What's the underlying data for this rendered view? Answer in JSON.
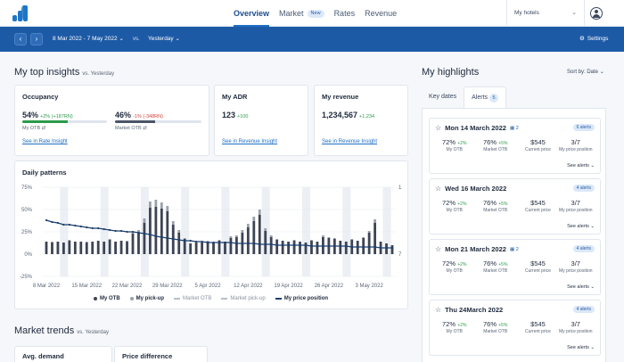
{
  "nav": {
    "tabs": [
      {
        "label": "Overview",
        "active": true
      },
      {
        "label": "Market",
        "badge": "New"
      },
      {
        "label": "Rates"
      },
      {
        "label": "Revenue"
      }
    ],
    "hotel_select": "My hotels",
    "icons": {
      "logo": "brand-logo",
      "user": "user-circle-icon"
    }
  },
  "filter": {
    "date_range": "8 Mar 2022 - 7 May 2022",
    "vs_label": "vs.",
    "compare": "Yesterday",
    "settings": "Settings"
  },
  "insights": {
    "title": "My top insights",
    "subtitle": "vs. Yesterday",
    "occupancy": {
      "title": "Occupancy",
      "mine": {
        "value": "54%",
        "delta": "+2% (+187RN)",
        "label": "My OTB",
        "fill": 0.54
      },
      "market": {
        "value": "46%",
        "delta": "-1% (-348RN)",
        "label": "Market OTB",
        "fill": 0.46
      },
      "link": "See in Rate Insight"
    },
    "adr": {
      "title": "My ADR",
      "value": "123",
      "delta": "+100",
      "link": "See in Revenue Insight"
    },
    "revenue": {
      "title": "My revenue",
      "value": "1,234,567",
      "delta": "+1,234",
      "link": "See in Revenue Insight"
    },
    "patterns": {
      "title": "Daily patterns",
      "legend": [
        "My OTB",
        "My pick-up",
        "Market OTB",
        "Market pick-up",
        "My price position"
      ]
    }
  },
  "chart_data": {
    "type": "bar",
    "y_ticks": [
      "75%",
      "50%",
      "25%",
      "0%",
      "-25%"
    ],
    "ylim": [
      -25,
      75
    ],
    "y2_ticks": [
      "1",
      "7"
    ],
    "x_ticks": [
      "8 Mar 2022",
      "15 Mar 2022",
      "22 Mar 2022",
      "29 Mar 2022",
      "5 Apr 2022",
      "12 Apr 2022",
      "19 Apr 2022",
      "26 Apr 2022",
      "3 May 2022"
    ],
    "weekend_bands": [
      3,
      10,
      17,
      24,
      31,
      38,
      45,
      52,
      59
    ],
    "series": [
      {
        "name": "My OTB",
        "color": "#3d4454",
        "values": [
          14,
          13,
          14,
          13,
          15,
          14,
          14,
          13,
          14,
          15,
          14,
          16,
          14,
          15,
          14,
          23,
          24,
          35,
          52,
          53,
          51,
          48,
          33,
          24,
          17,
          12,
          13,
          13,
          14,
          13,
          15,
          14,
          18,
          19,
          24,
          30,
          37,
          44,
          26,
          19,
          16,
          15,
          14,
          15,
          14,
          13,
          15,
          14,
          19,
          18,
          17,
          15,
          14,
          16,
          15,
          18,
          24,
          35,
          14,
          12,
          10
        ]
      },
      {
        "name": "My pick-up",
        "color": "#9aa1ac",
        "values": [
          0,
          1,
          0,
          0,
          1,
          0,
          0,
          1,
          0,
          0,
          0,
          1,
          0,
          0,
          1,
          2,
          3,
          5,
          7,
          8,
          7,
          6,
          4,
          3,
          1,
          0,
          0,
          0,
          1,
          0,
          1,
          0,
          2,
          2,
          3,
          4,
          5,
          6,
          3,
          2,
          1,
          0,
          0,
          1,
          0,
          0,
          1,
          0,
          2,
          1,
          1,
          0,
          0,
          1,
          0,
          1,
          2,
          4,
          0,
          0,
          0
        ]
      },
      {
        "name": "My price position",
        "color": "#1d3f6e",
        "values": [
          38,
          36,
          35,
          33,
          33,
          32,
          31,
          30,
          29,
          29,
          28,
          27,
          26,
          26,
          25,
          25,
          24,
          23,
          22,
          20,
          19,
          18,
          17,
          16,
          15,
          15,
          14,
          14,
          13,
          13,
          13,
          13,
          13,
          12,
          12,
          12,
          12,
          11,
          11,
          11,
          10,
          10,
          10,
          10,
          10,
          10,
          9,
          9,
          9,
          9,
          9,
          9,
          9,
          8,
          8,
          8,
          8,
          8,
          7,
          7,
          7
        ]
      }
    ]
  },
  "highlights": {
    "title": "My highlights",
    "sort": "Sort by: Date",
    "tabs": [
      {
        "label": "Key dates"
      },
      {
        "label": "Alerts",
        "count": "5",
        "active": true
      }
    ],
    "items": [
      {
        "date": "Mon 14 March 2022",
        "cal": "2",
        "badge": "6 alerts",
        "my_otb": "72%",
        "my_delta": "+2%",
        "mkt": "76%",
        "mkt_delta": "+5%",
        "price": "$545",
        "pos": "3/7"
      },
      {
        "date": "Wed 16 March 2022",
        "cal": "",
        "badge": "4 alerts",
        "my_otb": "72%",
        "my_delta": "+2%",
        "mkt": "76%",
        "mkt_delta": "+5%",
        "price": "$545",
        "pos": "3/7"
      },
      {
        "date": "Mon 21 March 2022",
        "cal": "2",
        "badge": "4 alerts",
        "my_otb": "72%",
        "my_delta": "+2%",
        "mkt": "76%",
        "mkt_delta": "+5%",
        "price": "$545",
        "pos": "3/7"
      },
      {
        "date": "Thu 24March 2022",
        "cal": "",
        "badge": "4 alerts",
        "my_otb": "72%",
        "my_delta": "+2%",
        "mkt": "76%",
        "mkt_delta": "+5%",
        "price": "$545",
        "pos": "3/7"
      }
    ],
    "labels": {
      "my_otb": "My OTB",
      "mkt": "Market OTB",
      "price": "Current price",
      "pos": "My price position",
      "see": "See alerts"
    }
  },
  "trends": {
    "title": "Market trends",
    "subtitle": "vs. Yesterday",
    "cards": [
      "Avg. demand",
      "Price difference"
    ]
  }
}
